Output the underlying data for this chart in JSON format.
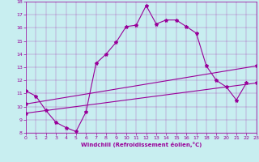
{
  "title": "",
  "xlabel": "Windchill (Refroidissement éolien,°C)",
  "xlim": [
    0,
    23
  ],
  "ylim": [
    8,
    18
  ],
  "yticks": [
    8,
    9,
    10,
    11,
    12,
    13,
    14,
    15,
    16,
    17,
    18
  ],
  "xticks": [
    0,
    1,
    2,
    3,
    4,
    5,
    6,
    7,
    8,
    9,
    10,
    11,
    12,
    13,
    14,
    15,
    16,
    17,
    18,
    19,
    20,
    21,
    22,
    23
  ],
  "bg_color": "#c8eef0",
  "line_color": "#990099",
  "line1_x": [
    0,
    1,
    2,
    3,
    4,
    5,
    6,
    7,
    8,
    9,
    10,
    11,
    12,
    13,
    14,
    15,
    16,
    17,
    18,
    19,
    20,
    21,
    22
  ],
  "line1_y": [
    11.2,
    10.8,
    9.7,
    8.8,
    8.4,
    8.1,
    9.6,
    13.3,
    14.0,
    14.9,
    16.1,
    16.2,
    17.7,
    16.3,
    16.6,
    16.6,
    16.1,
    15.6,
    13.1,
    12.0,
    11.5,
    10.5,
    11.8
  ],
  "line2_x": [
    0,
    23
  ],
  "line2_y": [
    10.2,
    13.1
  ],
  "line3_x": [
    0,
    23
  ],
  "line3_y": [
    9.5,
    11.8
  ],
  "marker": "*",
  "markersize": 3,
  "linewidth": 0.8
}
